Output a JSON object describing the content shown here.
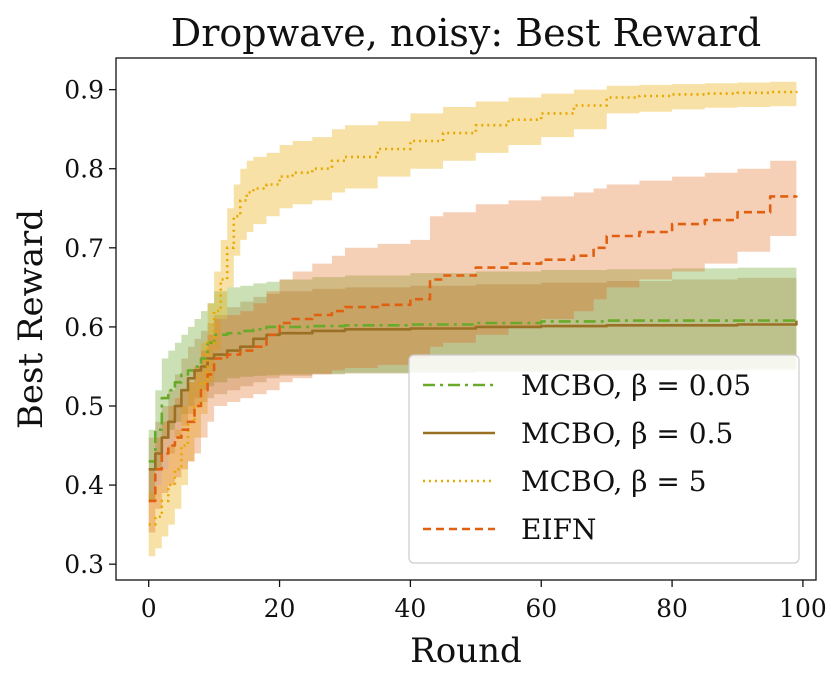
{
  "chart_data": {
    "type": "line",
    "title": "Dropwave, noisy: Best Reward",
    "xlabel": "Round",
    "ylabel": "Best Reward",
    "xlim": [
      -5,
      102
    ],
    "ylim": [
      0.28,
      0.94
    ],
    "xticks": [
      0,
      20,
      40,
      60,
      80,
      100
    ],
    "xtick_labels": [
      "0",
      "20",
      "40",
      "60",
      "80",
      "100"
    ],
    "yticks": [
      0.3,
      0.4,
      0.5,
      0.6,
      0.7,
      0.8,
      0.9
    ],
    "ytick_labels": [
      "0.3",
      "0.4",
      "0.5",
      "0.6",
      "0.7",
      "0.8",
      "0.9"
    ],
    "legend_position": "lower-right",
    "series": [
      {
        "name": "MCBO, β = 0.05",
        "legend_label": "MCBO, β = 0.05",
        "color": "#6aaa2a",
        "dash": "12,5,3,5",
        "band_opacity": 0.35,
        "x": [
          0,
          1,
          2,
          3,
          4,
          5,
          6,
          7,
          8,
          9,
          10,
          12,
          14,
          16,
          18,
          20,
          25,
          30,
          40,
          50,
          60,
          70,
          80,
          90,
          99
        ],
        "y": [
          0.43,
          0.47,
          0.51,
          0.52,
          0.53,
          0.54,
          0.545,
          0.55,
          0.56,
          0.58,
          0.59,
          0.592,
          0.595,
          0.597,
          0.6,
          0.6,
          0.601,
          0.602,
          0.603,
          0.605,
          0.607,
          0.608,
          0.608,
          0.608,
          0.609
        ],
        "lower": [
          0.38,
          0.42,
          0.46,
          0.47,
          0.48,
          0.49,
          0.5,
          0.51,
          0.52,
          0.525,
          0.53,
          0.535,
          0.537,
          0.538,
          0.539,
          0.54,
          0.541,
          0.542,
          0.543,
          0.544,
          0.545,
          0.545,
          0.545,
          0.545,
          0.545
        ],
        "upper": [
          0.47,
          0.52,
          0.56,
          0.57,
          0.58,
          0.59,
          0.6,
          0.61,
          0.62,
          0.63,
          0.645,
          0.65,
          0.652,
          0.655,
          0.657,
          0.66,
          0.663,
          0.665,
          0.668,
          0.67,
          0.672,
          0.673,
          0.674,
          0.675,
          0.675
        ]
      },
      {
        "name": "MCBO, β = 0.5",
        "legend_label": "MCBO, β = 0.5",
        "color": "#9a7025",
        "dash": "",
        "band_opacity": 0.28,
        "x": [
          0,
          1,
          2,
          3,
          4,
          5,
          6,
          7,
          8,
          9,
          10,
          12,
          14,
          16,
          18,
          20,
          25,
          30,
          40,
          50,
          60,
          70,
          80,
          90,
          99
        ],
        "y": [
          0.42,
          0.44,
          0.46,
          0.48,
          0.5,
          0.52,
          0.535,
          0.545,
          0.55,
          0.56,
          0.565,
          0.57,
          0.575,
          0.585,
          0.59,
          0.592,
          0.595,
          0.597,
          0.598,
          0.6,
          0.601,
          0.602,
          0.602,
          0.603,
          0.608
        ],
        "lower": [
          0.38,
          0.4,
          0.42,
          0.44,
          0.46,
          0.475,
          0.49,
          0.5,
          0.505,
          0.51,
          0.515,
          0.52,
          0.525,
          0.53,
          0.535,
          0.538,
          0.54,
          0.541,
          0.542,
          0.543,
          0.544,
          0.545,
          0.546,
          0.547,
          0.55
        ],
        "upper": [
          0.46,
          0.48,
          0.5,
          0.52,
          0.54,
          0.56,
          0.575,
          0.585,
          0.595,
          0.605,
          0.615,
          0.625,
          0.632,
          0.638,
          0.642,
          0.645,
          0.648,
          0.65,
          0.652,
          0.654,
          0.656,
          0.658,
          0.66,
          0.662,
          0.665
        ]
      },
      {
        "name": "MCBO, β = 5",
        "legend_label": "MCBO, β = 5",
        "color": "#e8a800",
        "dash": "2,4",
        "band_opacity": 0.35,
        "x": [
          0,
          1,
          2,
          3,
          4,
          5,
          6,
          7,
          8,
          9,
          10,
          11,
          12,
          13,
          14,
          15,
          16,
          18,
          20,
          22,
          25,
          28,
          30,
          35,
          40,
          45,
          50,
          55,
          60,
          65,
          70,
          75,
          80,
          85,
          90,
          95,
          99
        ],
        "y": [
          0.35,
          0.36,
          0.38,
          0.4,
          0.42,
          0.45,
          0.48,
          0.5,
          0.53,
          0.58,
          0.62,
          0.66,
          0.7,
          0.74,
          0.76,
          0.77,
          0.775,
          0.78,
          0.79,
          0.795,
          0.8,
          0.81,
          0.815,
          0.825,
          0.835,
          0.845,
          0.855,
          0.862,
          0.87,
          0.88,
          0.89,
          0.892,
          0.894,
          0.895,
          0.896,
          0.897,
          0.898
        ],
        "lower": [
          0.31,
          0.32,
          0.335,
          0.35,
          0.37,
          0.4,
          0.43,
          0.46,
          0.49,
          0.53,
          0.57,
          0.61,
          0.65,
          0.69,
          0.71,
          0.72,
          0.73,
          0.74,
          0.75,
          0.755,
          0.76,
          0.77,
          0.775,
          0.79,
          0.8,
          0.81,
          0.82,
          0.83,
          0.84,
          0.85,
          0.87,
          0.872,
          0.875,
          0.877,
          0.878,
          0.879,
          0.88
        ],
        "upper": [
          0.39,
          0.4,
          0.42,
          0.45,
          0.47,
          0.5,
          0.53,
          0.55,
          0.58,
          0.63,
          0.67,
          0.71,
          0.75,
          0.78,
          0.8,
          0.81,
          0.815,
          0.82,
          0.83,
          0.835,
          0.84,
          0.85,
          0.855,
          0.86,
          0.87,
          0.878,
          0.885,
          0.89,
          0.895,
          0.9,
          0.905,
          0.906,
          0.907,
          0.908,
          0.909,
          0.91,
          0.91
        ]
      },
      {
        "name": "EIFN",
        "legend_label": "EIFN",
        "color": "#e06010",
        "dash": "8,5",
        "band_opacity": 0.3,
        "x": [
          0,
          1,
          2,
          3,
          4,
          5,
          6,
          7,
          8,
          9,
          10,
          12,
          14,
          16,
          18,
          20,
          22,
          25,
          28,
          30,
          35,
          40,
          43,
          45,
          50,
          55,
          60,
          65,
          68,
          70,
          75,
          80,
          85,
          90,
          95,
          99
        ],
        "y": [
          0.38,
          0.42,
          0.44,
          0.45,
          0.46,
          0.47,
          0.48,
          0.5,
          0.52,
          0.54,
          0.56,
          0.565,
          0.57,
          0.575,
          0.59,
          0.605,
          0.61,
          0.615,
          0.62,
          0.625,
          0.628,
          0.635,
          0.66,
          0.665,
          0.675,
          0.68,
          0.685,
          0.69,
          0.7,
          0.715,
          0.72,
          0.73,
          0.735,
          0.745,
          0.765,
          0.766
        ],
        "lower": [
          0.34,
          0.37,
          0.39,
          0.4,
          0.41,
          0.42,
          0.43,
          0.44,
          0.46,
          0.48,
          0.5,
          0.505,
          0.51,
          0.515,
          0.52,
          0.53,
          0.535,
          0.54,
          0.545,
          0.548,
          0.552,
          0.56,
          0.575,
          0.58,
          0.59,
          0.6,
          0.61,
          0.62,
          0.635,
          0.65,
          0.66,
          0.67,
          0.68,
          0.695,
          0.715,
          0.718
        ],
        "upper": [
          0.42,
          0.46,
          0.48,
          0.5,
          0.51,
          0.52,
          0.53,
          0.55,
          0.57,
          0.59,
          0.61,
          0.615,
          0.62,
          0.63,
          0.645,
          0.66,
          0.67,
          0.68,
          0.69,
          0.7,
          0.705,
          0.71,
          0.74,
          0.745,
          0.755,
          0.76,
          0.765,
          0.77,
          0.775,
          0.78,
          0.785,
          0.79,
          0.795,
          0.8,
          0.81,
          0.812
        ]
      }
    ]
  }
}
